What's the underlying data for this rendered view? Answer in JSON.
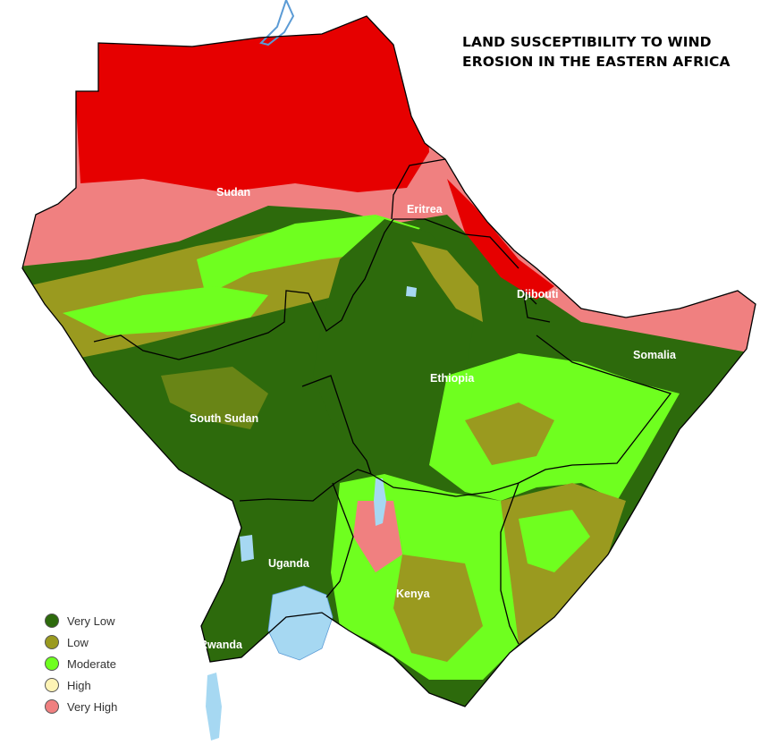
{
  "title": {
    "line1": "LAND SUSCEPTIBILITY TO WIND",
    "line2": "EROSION IN THE EASTERN AFRICA"
  },
  "countries": {
    "sudan": "Sudan",
    "eritrea": "Eritrea",
    "djibouti": "Djibouti",
    "ethiopia": "Ethiopia",
    "somalia": "Somalia",
    "south_sudan": "South Sudan",
    "uganda": "Uganda",
    "kenya": "Kenya",
    "rwanda": "Rwanda"
  },
  "legend": [
    {
      "label": "Very Low",
      "color": "#2d6a0c"
    },
    {
      "label": "Low",
      "color": "#9a9a1f"
    },
    {
      "label": "Moderate",
      "color": "#6fff1f"
    },
    {
      "label": "High",
      "color": "#fdf3b5"
    },
    {
      "label": "Very High",
      "color": "#f08080"
    }
  ],
  "colors": {
    "very_high_dark": "#e60000",
    "water": "#a6d8f2",
    "border": "#000000"
  }
}
